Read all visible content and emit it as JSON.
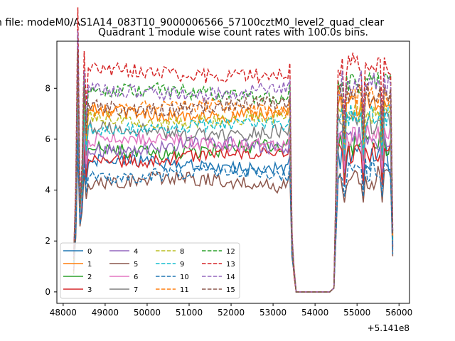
{
  "chart_data": {
    "type": "line",
    "suptitle": "n file: modeM0/AS1A14_083T10_9000006566_57100cztM0_level2_quad_clear",
    "title": "Quadrant 1 module wise count rates with 100.0s bins.",
    "xlabel": "",
    "ylabel": "",
    "x_offset_label": "+5.141e8",
    "xlim": [
      47850,
      56250
    ],
    "ylim": [
      -0.45,
      9.85
    ],
    "xticks": [
      48000,
      49000,
      50000,
      51000,
      52000,
      53000,
      54000,
      55000,
      56000
    ],
    "xtick_labels": [
      "48000",
      "49000",
      "50000",
      "51000",
      "52000",
      "53000",
      "54000",
      "55000",
      "56000"
    ],
    "yticks": [
      0,
      2,
      4,
      6,
      8
    ],
    "ytick_labels": [
      "0",
      "2",
      "4",
      "6",
      "8"
    ],
    "grid": false,
    "legend_position": "lower-left",
    "series": [
      {
        "name": "0",
        "color": "#1f77b4",
        "dash": "solid",
        "level": 5.0,
        "seg2": 5.3
      },
      {
        "name": "1",
        "color": "#ff7f0e",
        "dash": "solid",
        "level": 7.0,
        "seg2": 7.3
      },
      {
        "name": "2",
        "color": "#2ca02c",
        "dash": "solid",
        "level": 5.6,
        "seg2": 5.8
      },
      {
        "name": "3",
        "color": "#d62728",
        "dash": "solid",
        "level": 5.3,
        "seg2": 5.4
      },
      {
        "name": "4",
        "color": "#9467bd",
        "dash": "solid",
        "level": 5.7,
        "seg2": 6.0
      },
      {
        "name": "5",
        "color": "#8c564b",
        "dash": "solid",
        "level": 4.3,
        "seg2": 4.5
      },
      {
        "name": "6",
        "color": "#e377c2",
        "dash": "solid",
        "level": 5.9,
        "seg2": 6.2
      },
      {
        "name": "7",
        "color": "#7f7f7f",
        "dash": "solid",
        "level": 6.3,
        "seg2": 6.6
      },
      {
        "name": "8",
        "color": "#bcbd22",
        "dash": "dashed",
        "level": 6.8,
        "seg2": 7.1
      },
      {
        "name": "9",
        "color": "#17becf",
        "dash": "dashed",
        "level": 6.5,
        "seg2": 6.9
      },
      {
        "name": "10",
        "color": "#1f77b4",
        "dash": "dashed",
        "level": 4.6,
        "seg2": 4.8
      },
      {
        "name": "11",
        "color": "#ff7f0e",
        "dash": "dashed",
        "level": 7.2,
        "seg2": 7.8
      },
      {
        "name": "12",
        "color": "#2ca02c",
        "dash": "dashed",
        "level": 7.8,
        "seg2": 8.2
      },
      {
        "name": "13",
        "color": "#d62728",
        "dash": "dashed",
        "level": 8.6,
        "seg2": 8.9
      },
      {
        "name": "14",
        "color": "#9467bd",
        "dash": "dashed",
        "level": 7.9,
        "seg2": 8.2
      },
      {
        "name": "15",
        "color": "#8c564b",
        "dash": "dashed",
        "level": 7.3,
        "seg2": 7.7
      }
    ],
    "time_segments": {
      "seg1_start": 48250,
      "seg1_end": 53450,
      "gap_zero_start": 53550,
      "gap_zero_end": 54350,
      "seg2_start": 54550,
      "seg2_end": 55850,
      "step": 50,
      "gap_value": 0
    }
  }
}
